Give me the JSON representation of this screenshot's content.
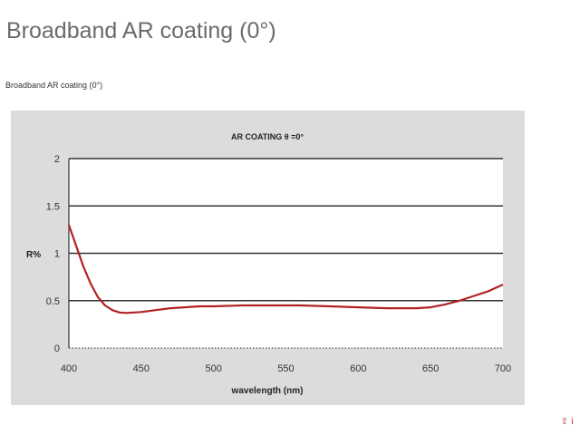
{
  "page": {
    "title": "Broadband AR coating (0°)",
    "caption": "Broadband AR coating  (0°)",
    "corner_icon": "watermark-arrow-icon",
    "corner_text": "⇧ i"
  },
  "colors": {
    "panel_background": "#dcdcdc",
    "plot_background": "#ffffff",
    "grid": "#333333",
    "curve": "#b22222"
  },
  "chart_data": {
    "type": "line",
    "title": "AR COATING  θ =0°",
    "xlabel": "wavelength (nm)",
    "ylabel": "R%",
    "xlim": [
      400,
      700
    ],
    "ylim": [
      0,
      2
    ],
    "x_ticks": [
      400,
      450,
      500,
      550,
      600,
      650,
      700
    ],
    "y_ticks": [
      0,
      0.5,
      1,
      1.5,
      2
    ],
    "grid": "horizontal",
    "legend": "none",
    "series": [
      {
        "x": [
          400,
          405,
          410,
          415,
          420,
          425,
          430,
          435,
          440,
          450,
          460,
          470,
          480,
          490,
          500,
          520,
          540,
          560,
          580,
          600,
          620,
          640,
          650,
          660,
          670,
          680,
          690,
          700
        ],
        "y": [
          1.3,
          1.08,
          0.86,
          0.68,
          0.54,
          0.45,
          0.4,
          0.375,
          0.37,
          0.38,
          0.4,
          0.42,
          0.43,
          0.44,
          0.44,
          0.45,
          0.45,
          0.45,
          0.44,
          0.43,
          0.42,
          0.42,
          0.43,
          0.46,
          0.5,
          0.55,
          0.6,
          0.67
        ]
      }
    ]
  }
}
